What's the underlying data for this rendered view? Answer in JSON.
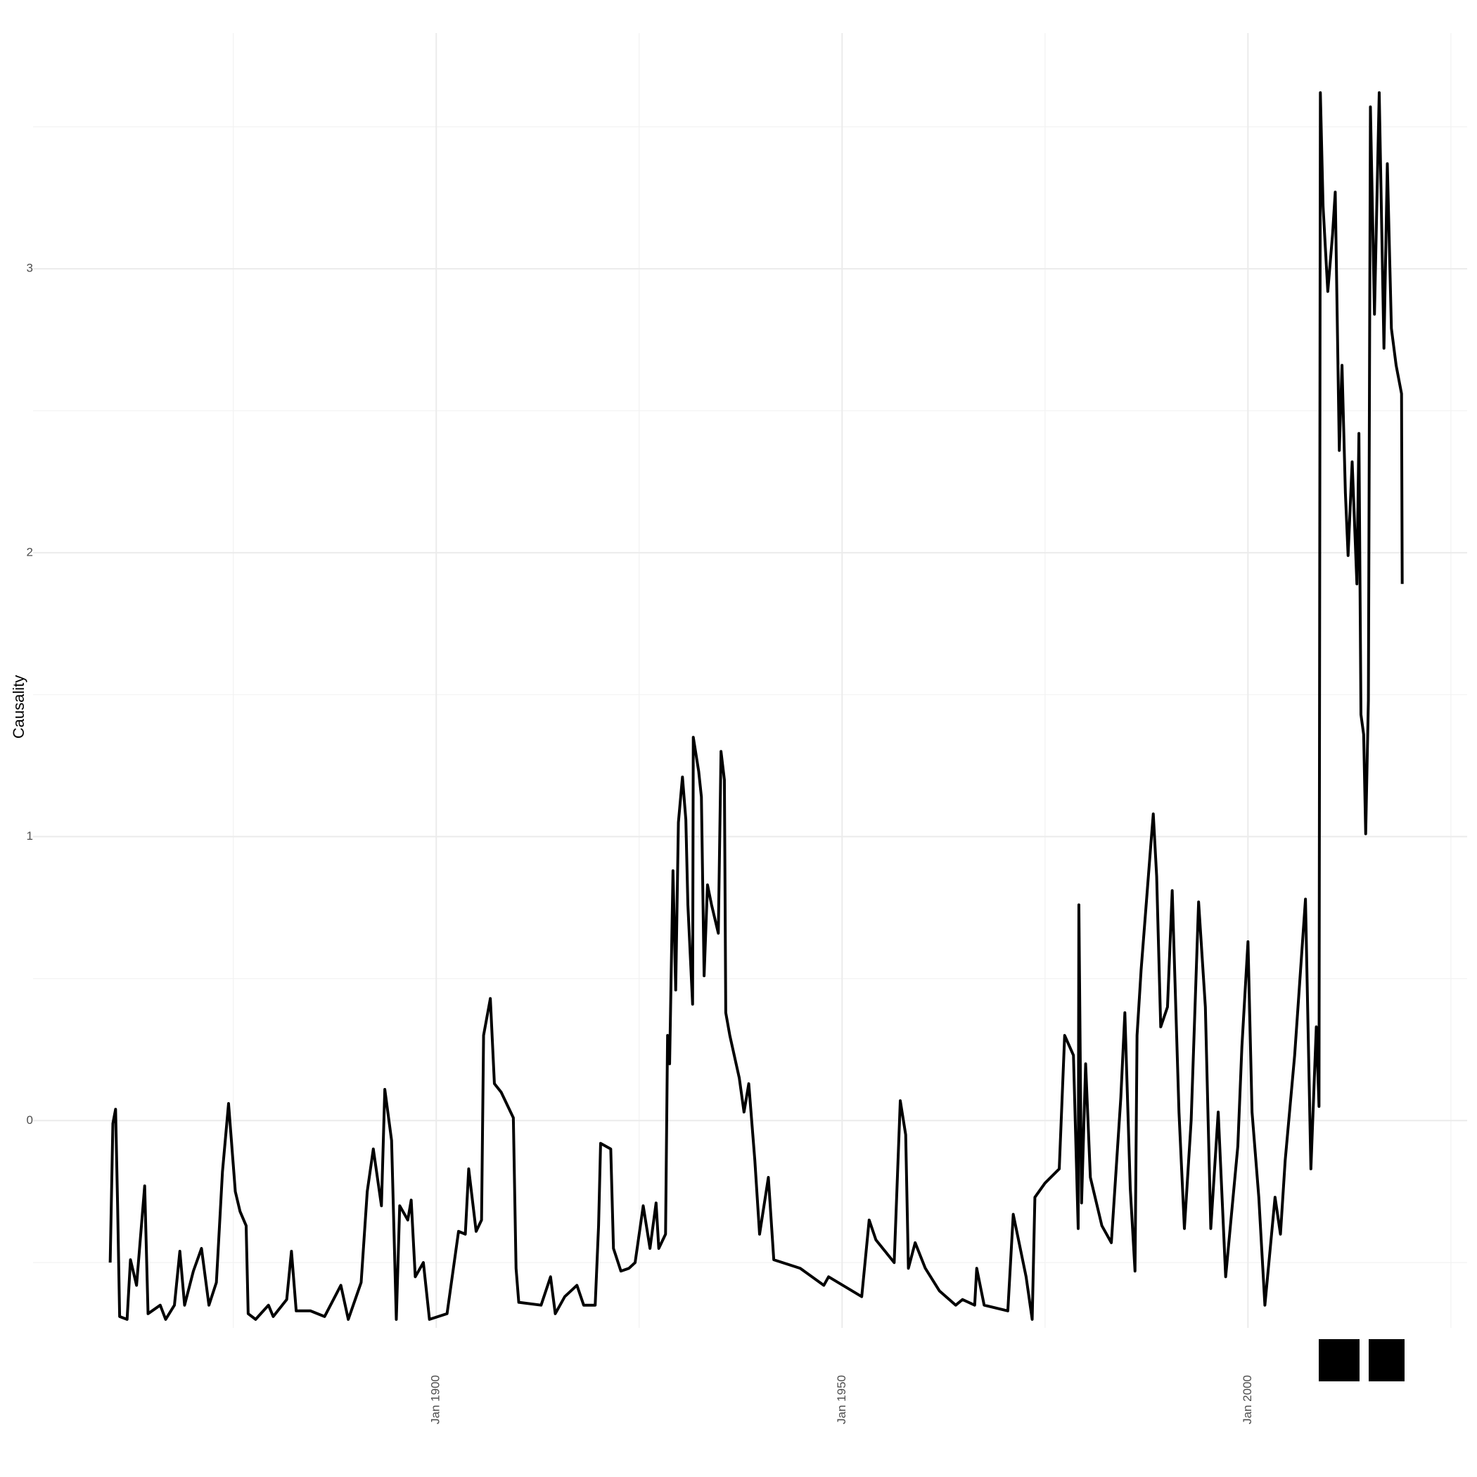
{
  "chart_data": {
    "type": "line",
    "y_label": "Causality",
    "xlim": [
      "1850-05",
      "2027-01"
    ],
    "xticks": [
      {
        "value": "1900-01",
        "label": "Jan 1900"
      },
      {
        "value": "1950-01",
        "label": "Jan 1950"
      },
      {
        "value": "2000-01",
        "label": "Jan 2000"
      }
    ],
    "x_minor_grid": [
      "1875-01",
      "1925-01",
      "1975-01",
      "2025-01"
    ],
    "ylim": [
      -0.73,
      3.83
    ],
    "yticks": [
      0,
      1,
      2,
      3
    ],
    "y_minor_grid": [
      -0.5,
      0.5,
      1.5,
      2.5,
      3.5
    ],
    "grid": true,
    "x": [
      "1859-11",
      "1860-03",
      "1860-07",
      "1860-10",
      "1861-01",
      "1861-12",
      "1862-05",
      "1863-02",
      "1864-02",
      "1864-07",
      "1866-01",
      "1866-09",
      "1867-10",
      "1868-06",
      "1869-01",
      "1870-02",
      "1871-02",
      "1872-01",
      "1872-12",
      "1873-09",
      "1874-06",
      "1875-04",
      "1875-11",
      "1876-08",
      "1876-11",
      "1877-10",
      "1879-05",
      "1879-12",
      "1881-08",
      "1882-03",
      "1882-10",
      "1884-07",
      "1886-04",
      "1888-04",
      "1889-03",
      "1890-10",
      "1891-07",
      "1892-04",
      "1893-04",
      "1893-09",
      "1894-07",
      "1895-02",
      "1895-07",
      "1896-07",
      "1896-12",
      "1897-06",
      "1898-06",
      "1899-03",
      "1901-05",
      "1902-10",
      "1903-08",
      "1904-01",
      "1904-12",
      "1905-08",
      "1905-11",
      "1906-09",
      "1907-03",
      "1908-01",
      "1909-07",
      "1909-11",
      "1910-03",
      "1912-12",
      "1914-02",
      "1914-09",
      "1915-11",
      "1917-05",
      "1918-03",
      "1919-08",
      "1920-01",
      "1920-04",
      "1921-07",
      "1921-11",
      "1922-10",
      "1923-10",
      "1924-07",
      "1925-07",
      "1926-05",
      "1927-02",
      "1927-06",
      "1928-04",
      "1928-07",
      "1928-10",
      "1929-03",
      "1929-07",
      "1929-11",
      "1930-05",
      "1930-10",
      "1931-01",
      "1931-08",
      "1931-09",
      "1932-05",
      "1932-09",
      "1933-01",
      "1933-06",
      "1933-12",
      "1934-10",
      "1935-02",
      "1935-07",
      "1935-09",
      "1936-03",
      "1937-05",
      "1937-12",
      "1938-07",
      "1939-04",
      "1939-11",
      "1940-12",
      "1941-08",
      "1944-11",
      "1947-10",
      "1948-05",
      "1952-06",
      "1953-05",
      "1954-03",
      "1956-06",
      "1957-03",
      "1957-11",
      "1958-03",
      "1959-01",
      "1960-04",
      "1962-01",
      "1964-01",
      "1964-11",
      "1966-05",
      "1966-08",
      "1967-07",
      "1970-06",
      "1971-02",
      "1972-09",
      "1973-06",
      "1973-10",
      "1975-01",
      "1976-10",
      "1977-06",
      "1978-07",
      "1979-02",
      "1979-03",
      "1979-07",
      "1980-01",
      "1980-08",
      "1982-01",
      "1983-03",
      "1984-05",
      "1984-11",
      "1985-07",
      "1986-02",
      "1986-05",
      "1986-11",
      "1988-01",
      "1988-05",
      "1988-10",
      "1989-04",
      "1990-02",
      "1990-09",
      "1991-07",
      "1992-03",
      "1993-01",
      "1993-12",
      "1994-10",
      "1995-06",
      "1996-05",
      "1997-04",
      "1998-10",
      "1999-04",
      "2000-01",
      "2000-07",
      "2001-05",
      "2002-02",
      "2003-05",
      "2004-01",
      "2004-08",
      "2005-10",
      "2007-02",
      "2007-10",
      "2008-06",
      "2008-10",
      "2008-12",
      "2009-04",
      "2009-11",
      "2010-06",
      "2010-10",
      "2011-04",
      "2011-08",
      "2012-01",
      "2012-05",
      "2012-11",
      "2013-06",
      "2013-09",
      "2013-12",
      "2014-04",
      "2014-07",
      "2014-11",
      "2015-02",
      "2015-08",
      "2016-03",
      "2016-10",
      "2017-03",
      "2017-09",
      "2018-04",
      "2018-12",
      "2019-01"
    ],
    "series": [
      {
        "color": "#000000",
        "values": [
          -0.5,
          -0.01,
          0.04,
          -0.3,
          -0.69,
          -0.7,
          -0.49,
          -0.58,
          -0.23,
          -0.68,
          -0.65,
          -0.7,
          -0.65,
          -0.46,
          -0.65,
          -0.53,
          -0.45,
          -0.65,
          -0.57,
          -0.18,
          0.06,
          -0.25,
          -0.32,
          -0.37,
          -0.68,
          -0.7,
          -0.65,
          -0.69,
          -0.63,
          -0.46,
          -0.67,
          -0.67,
          -0.69,
          -0.58,
          -0.7,
          -0.57,
          -0.25,
          -0.1,
          -0.3,
          0.11,
          -0.07,
          -0.7,
          -0.3,
          -0.35,
          -0.28,
          -0.55,
          -0.5,
          -0.7,
          -0.68,
          -0.39,
          -0.4,
          -0.17,
          -0.39,
          -0.35,
          0.3,
          0.43,
          0.13,
          0.1,
          0.01,
          -0.52,
          -0.64,
          -0.65,
          -0.55,
          -0.68,
          -0.62,
          -0.58,
          -0.65,
          -0.65,
          -0.37,
          -0.08,
          -0.1,
          -0.45,
          -0.53,
          -0.52,
          -0.5,
          -0.3,
          -0.45,
          -0.29,
          -0.45,
          -0.4,
          0.3,
          0.2,
          0.88,
          0.46,
          1.05,
          1.21,
          1.06,
          0.76,
          0.41,
          1.35,
          1.23,
          1.14,
          0.51,
          0.83,
          0.76,
          0.66,
          1.3,
          1.2,
          0.38,
          0.3,
          0.15,
          0.03,
          0.13,
          -0.14,
          -0.4,
          -0.2,
          -0.49,
          -0.52,
          -0.58,
          -0.55,
          -0.62,
          -0.35,
          -0.42,
          -0.5,
          0.07,
          -0.05,
          -0.52,
          -0.43,
          -0.52,
          -0.6,
          -0.65,
          -0.63,
          -0.65,
          -0.52,
          -0.65,
          -0.67,
          -0.33,
          -0.55,
          -0.7,
          -0.27,
          -0.22,
          -0.17,
          0.3,
          0.23,
          -0.38,
          0.76,
          -0.29,
          0.2,
          -0.2,
          -0.37,
          -0.43,
          0.08,
          0.38,
          -0.24,
          -0.53,
          0.3,
          0.53,
          0.96,
          1.08,
          0.86,
          0.33,
          0.4,
          0.81,
          0.03,
          -0.38,
          0.0,
          0.77,
          0.4,
          -0.38,
          0.03,
          -0.55,
          -0.09,
          0.26,
          0.63,
          0.03,
          -0.27,
          -0.65,
          -0.27,
          -0.4,
          -0.14,
          0.23,
          0.78,
          -0.17,
          0.33,
          0.05,
          3.62,
          3.22,
          2.92,
          3.12,
          3.27,
          2.36,
          2.66,
          2.21,
          1.99,
          2.32,
          1.89,
          2.42,
          1.43,
          1.36,
          1.01,
          1.48,
          3.57,
          2.84,
          3.62,
          2.72,
          3.37,
          2.79,
          2.66,
          2.56,
          1.89
        ]
      }
    ]
  }
}
